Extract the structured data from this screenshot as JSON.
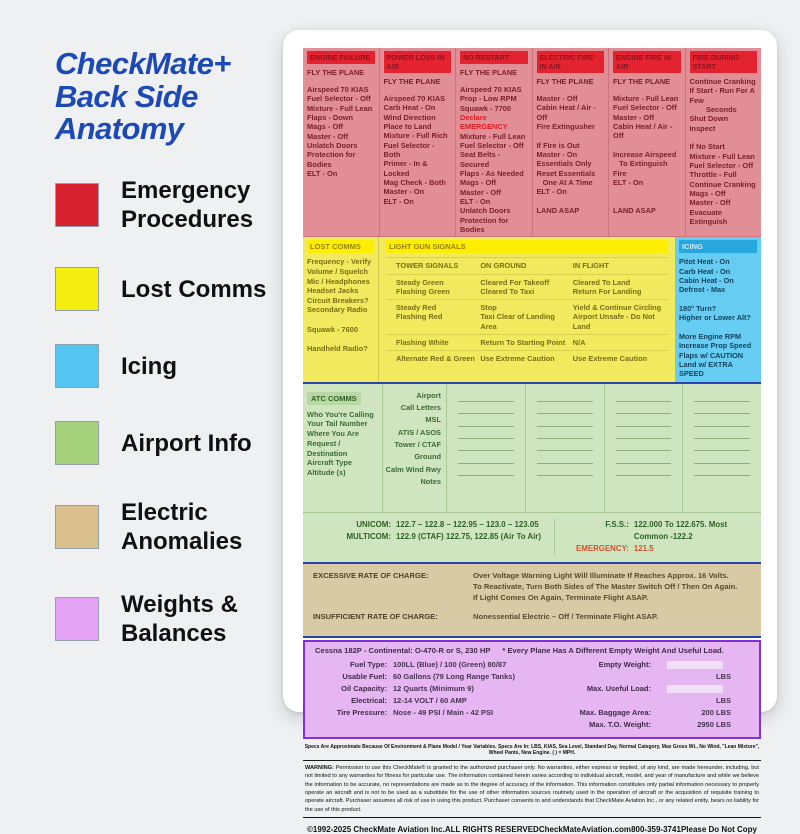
{
  "title": "CheckMate+\nBack Side\nAnatomy",
  "legend": [
    {
      "label": "Emergency\nProcedures",
      "color": "#d7212e"
    },
    {
      "label": "Lost Comms",
      "color": "#f6ee12"
    },
    {
      "label": "Icing",
      "color": "#55c6f2"
    },
    {
      "label": "Airport Info",
      "color": "#a6d17d"
    },
    {
      "label": "Electric\nAnomalies",
      "color": "#d9c08c"
    },
    {
      "label": "Weights &\nBalances",
      "color": "#e4a2f5"
    }
  ],
  "emergency_columns": [
    {
      "title": "ENGINE FAILURE",
      "intro": "FLY THE PLANE",
      "body": "Airspeed 70 KIAS\nFuel Selector - Off\nMixture - Full Lean\nFlaps - Down\nMags - Off\nMaster - Off\nUnlatch Doors\nProtection for Bodies\nELT - On",
      "alert": "",
      "body2": ""
    },
    {
      "title": "POWER LOSS IN AIR",
      "intro": "FLY THE PLANE",
      "body": "Airspeed 70 KIAS\nCarb Heat - On\nWind Direction\nPlace to Land\nMixture - Full Rich\nFuel Selector - Both\nPrimer - In & Locked\nMag Check - Both\nMaster - On\nELT - On",
      "alert": "",
      "body2": ""
    },
    {
      "title": "NO RESTART",
      "intro": "FLY THE PLANE",
      "body": "Airspeed 70 KIAS\nProp - Low RPM\nSquawk - 7700",
      "alert": "Declare EMERGENCY",
      "body2": "Mixture - Full Lean\nFuel Selector - Off\nSeat Belts - Secured\nFlaps - As Needed\nMags - Off\nMaster - Off\nELT - On\nUnlatch Doors\nProtection for Bodies"
    },
    {
      "title": "ELECTRIC FIRE IN AIR",
      "intro": "FLY THE PLANE",
      "body": "Master - Off\nCabin Heat / Air - Off\nFire Extingusher\n\nIf Fire is Out\nMaster - On\nEssentials Only\nReset Essentials\n   One At A Time\nELT - On\n\nLAND ASAP",
      "alert": "",
      "body2": ""
    },
    {
      "title": "ENGINE FIRE IN AIR",
      "intro": "FLY THE PLANE",
      "body": "Mixture - Full Lean\nFuel Selector - Off\nMaster - Off\nCabin Heat / Air - Off\n\nIncrease Airspeed\n   To Extinguish Fire\nELT - On\n\n\nLAND ASAP",
      "alert": "",
      "body2": ""
    },
    {
      "title": "FIRE DURING START",
      "intro": "",
      "body": "Continue Cranking\nIf Start - Run For A Few\n        Seconds\nShut Down\nInspect\n\nIf No Start\nMixture - Full Lean\nFuel Selector - Off\nThrottle - Full\nContinue Cranking\nMags - Off\nMaster - Off\nEvacuate\nExtinguish",
      "alert": "",
      "body2": ""
    }
  ],
  "lost_comms": {
    "title": "LOST COMMS",
    "body": "Frequency - Verify\nVolume / Squelch\nMic / Headphones\nHeadset Jacks\nCircuit Breakers?\nSecondary Radio\n\nSquawk - 7600\n\nHandheld Radio?"
  },
  "light_gun": {
    "title": "LIGHT GUN SIGNALS",
    "rows": [
      {
        "signal": "TOWER SIGNALS",
        "ground": "ON GROUND",
        "flight": "IN FLIGHT"
      },
      {
        "signal": "Steady Green\nFlashing Green",
        "ground": "Cleared For Takeoff\nCleared To Taxi",
        "flight": "Cleared To Land\nReturn For Landing"
      },
      {
        "signal": "Steady Red\nFlashing Red",
        "ground": "Stop\nTaxi Clear of Landing Area",
        "flight": "Yield & Continue Circling\nAirport Unsafe - Do Not Land"
      },
      {
        "signal": "Flashing White",
        "ground": "Return To Starting Point",
        "flight": "N/A"
      },
      {
        "signal": "Alternate Red & Green",
        "ground": "Use Extreme Caution",
        "flight": "Use Extreme Caution"
      }
    ]
  },
  "icing": {
    "title": "ICING",
    "body": "Pitot Heat - On\nCarb Heat - On\nCabin Heat - On\nDefrost - Max\n\n180° Turn?\nHigher or Lower Alt?\n\nMore Engine RPM\nIncrease Prop Speed\nFlaps w/ CAUTION\nLand w/ EXTRA SPEED"
  },
  "atc": {
    "title": "ATC COMMS",
    "tips": "Who You're Calling\nYour Tail Number\nWhere You Are\nRequest / Destination\nAircraft Type\nAltitude (s)",
    "labels": [
      "Airport",
      "Call Letters",
      "MSL",
      "ATIS / ASOS",
      "Tower / CTAF",
      "Ground",
      "Calm Wind Rwy",
      "Notes"
    ]
  },
  "freqs": {
    "unicom_label": "UNICOM:",
    "unicom": "122.7 – 122.8 – 122.95 – 123.0 – 123.05",
    "multicom_label": "MULTICOM:",
    "multicom": "122.9 (CTAF) 122.75, 122.85 (Air To Air)",
    "fss_label": "F.S.S.:",
    "fss": "122.000 To 122.675. Most Common -122.2",
    "emergency_label": "EMERGENCY:",
    "emergency": "121.5"
  },
  "charge": {
    "rows": [
      {
        "label": "EXCESSIVE RATE OF CHARGE:",
        "text": "Over Voltage Warning Light Will Illuminate If Reaches Approx. 16 Volts.\nTo Reactivate, Turn Both Sides of The Master Switch Off / Then On Again.\nIf Light Comes On Again, Terminate Flight ASAP."
      },
      {
        "label": "INSUFFICIENT RATE OF CHARGE:",
        "text": "Nonessential Electric – Off / Terminate Flight ASAP."
      }
    ]
  },
  "weights": {
    "header": "Cessna 182P - Continental: O-470-R or S, 230 HP",
    "note": "* Every Plane Has A Different Empty Weight And Useful Load.",
    "left_rows": [
      {
        "label": "Fuel Type:",
        "value": "100LL (Blue) / 100 (Green) 80/87"
      },
      {
        "label": "Usable Fuel:",
        "value": "60 Gallons (79 Long Range Tanks)"
      },
      {
        "label": "Oil Capacity:",
        "value": "12 Quarts (Minimum 9)"
      },
      {
        "label": "Electrical:",
        "value": "12-14 VOLT / 60 AMP"
      },
      {
        "label": "Tire Pressure:",
        "value": "Nose - 49 PSI / Main - 42 PSI"
      }
    ],
    "right_rows": [
      {
        "label": "Empty Weight:",
        "value": "LBS",
        "blank": true
      },
      {
        "label": "Max. Useful Load:",
        "value": "LBS",
        "blank": true
      },
      {
        "label": "Max. Baggage Area:",
        "value": "200 LBS"
      },
      {
        "label": "Max. T.O. Weight:",
        "value": "2950 LBS"
      }
    ]
  },
  "specs_line": "Specs Are Approximate Because Of Environment & Plane Model / Year Variables. Specs Are In: LBS, KIAS, Sea Level, Standard Day, Normal Category, Max Gross Wt., No Wind, \"Lean Mixture\", Wheel Pants, New Engine. ( ) = MPH.",
  "warning": {
    "label": "WARNING:",
    "text": "Permission to use this CheckMate® is granted to the authorized purchaser only. No warranties, either express or implied, of any kind, are made hereunder, including, but not limited to any warranties for fitness for particular use. The information contained herein varies according to individual aircraft, model, and year of manufacture and while we believe the information to be accurate, no representations are made as to the degree of accuracy of the information. This information constitutes only partial information necessary to properly operate an aircraft and is not to be used as a substitute for the use of other information sources routinely used in the operation of aircraft or the acquisition of requisite training to operate aircraft. Purchaser assumes all risk of use in using this product. Purchaser consents to and understands that CheckMate Aviation Inc., or any related entity, bears no liability for the use of this product."
  },
  "footer": [
    "©1992-2025 CheckMate Aviation Inc.",
    "ALL RIGHTS RESERVED",
    "CheckMateAviation.com",
    "800-359-3741",
    "Please Do Not Copy"
  ]
}
